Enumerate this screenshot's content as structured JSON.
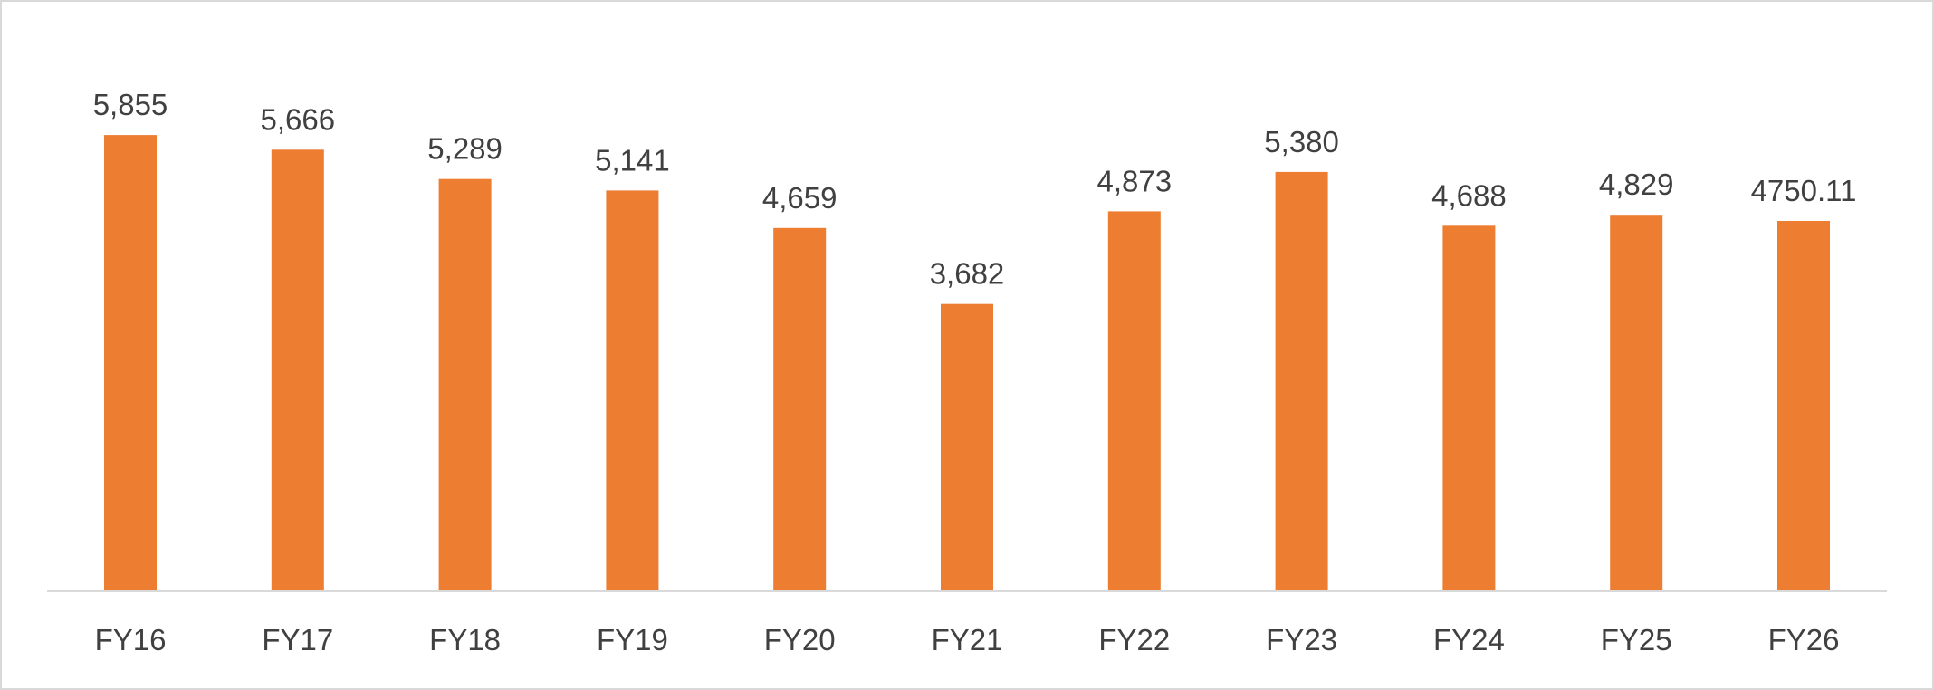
{
  "chart_data": {
    "type": "bar",
    "categories": [
      "FY16",
      "FY17",
      "FY18",
      "FY19",
      "FY20",
      "FY21",
      "FY22",
      "FY23",
      "FY24",
      "FY25",
      "FY26"
    ],
    "values": [
      5855,
      5666,
      5289,
      5141,
      4659,
      3682,
      4873,
      5380,
      4688,
      4829,
      4750.11
    ],
    "data_labels": [
      "5,855",
      "5,666",
      "5,289",
      "5,141",
      "4,659",
      "3,682",
      "4,873",
      "5,380",
      "4,688",
      "4,829",
      "4750.11"
    ],
    "title": "",
    "xlabel": "",
    "ylabel": "",
    "ylim": [
      0,
      6000
    ],
    "grid": false,
    "legend": "none",
    "colors": {
      "bar": "#ED7D31",
      "axis": "#D9D9D9",
      "text": "#404040"
    }
  }
}
